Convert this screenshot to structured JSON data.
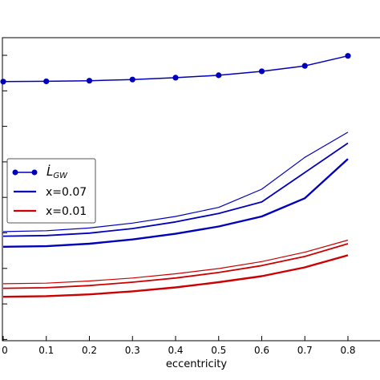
{
  "chart_data": {
    "type": "line",
    "xlabel": "eccentricity",
    "x_ticks": [
      "0",
      "0.1",
      "0.2",
      "0.3",
      "0.4",
      "0.5",
      "0.6",
      "0.7",
      "0.8"
    ],
    "xlim": [
      0,
      0.87
    ],
    "y_tick_count": 9,
    "grid": false,
    "legend": {
      "placement": "center-left",
      "entries": [
        {
          "label": "L̇",
          "subscript": "GW",
          "style": "line-marker",
          "color": "#0000bb"
        },
        {
          "label": "x=0.07",
          "style": "line",
          "color": "#0000bb"
        },
        {
          "label": "x=0.01",
          "style": "line",
          "color": "#cc0000"
        }
      ]
    },
    "series": [
      {
        "name": "L̇_GW",
        "color": "#0000bb",
        "marker": true,
        "width": 1.5,
        "x": [
          0,
          0.1,
          0.2,
          0.3,
          0.4,
          0.5,
          0.6,
          0.7,
          0.8
        ],
        "y": [
          0.855,
          0.856,
          0.858,
          0.862,
          0.868,
          0.876,
          0.889,
          0.907,
          0.94
        ]
      },
      {
        "name": "",
        "color": "#0000bb",
        "width": 1.2,
        "x": [
          0,
          0.1,
          0.2,
          0.3,
          0.4,
          0.5,
          0.6,
          0.7,
          0.8
        ],
        "y": [
          0.36,
          0.363,
          0.372,
          0.388,
          0.41,
          0.44,
          0.5,
          0.605,
          0.688
        ]
      },
      {
        "name": "",
        "color": "#0000bb",
        "width": 1.8,
        "x": [
          0,
          0.1,
          0.2,
          0.3,
          0.4,
          0.5,
          0.6,
          0.7,
          0.8
        ],
        "y": [
          0.345,
          0.347,
          0.355,
          0.37,
          0.392,
          0.42,
          0.458,
          0.555,
          0.652
        ]
      },
      {
        "name": "",
        "color": "#0000bb",
        "width": 2.4,
        "x": [
          0,
          0.1,
          0.2,
          0.3,
          0.4,
          0.5,
          0.6,
          0.7,
          0.8
        ],
        "y": [
          0.31,
          0.312,
          0.32,
          0.334,
          0.353,
          0.377,
          0.41,
          0.47,
          0.6
        ]
      },
      {
        "name": "",
        "color": "#cc0000",
        "width": 1.2,
        "x": [
          0,
          0.1,
          0.2,
          0.3,
          0.4,
          0.5,
          0.6,
          0.7,
          0.8
        ],
        "y": [
          0.188,
          0.19,
          0.197,
          0.207,
          0.221,
          0.238,
          0.261,
          0.292,
          0.332
        ]
      },
      {
        "name": "",
        "color": "#cc0000",
        "width": 1.8,
        "x": [
          0,
          0.1,
          0.2,
          0.3,
          0.4,
          0.5,
          0.6,
          0.7,
          0.8
        ],
        "y": [
          0.173,
          0.175,
          0.182,
          0.193,
          0.207,
          0.225,
          0.248,
          0.278,
          0.32
        ]
      },
      {
        "name": "",
        "color": "#cc0000",
        "width": 2.4,
        "x": [
          0,
          0.1,
          0.2,
          0.3,
          0.4,
          0.5,
          0.6,
          0.7,
          0.8
        ],
        "y": [
          0.145,
          0.147,
          0.153,
          0.163,
          0.176,
          0.193,
          0.213,
          0.242,
          0.282
        ]
      }
    ]
  }
}
